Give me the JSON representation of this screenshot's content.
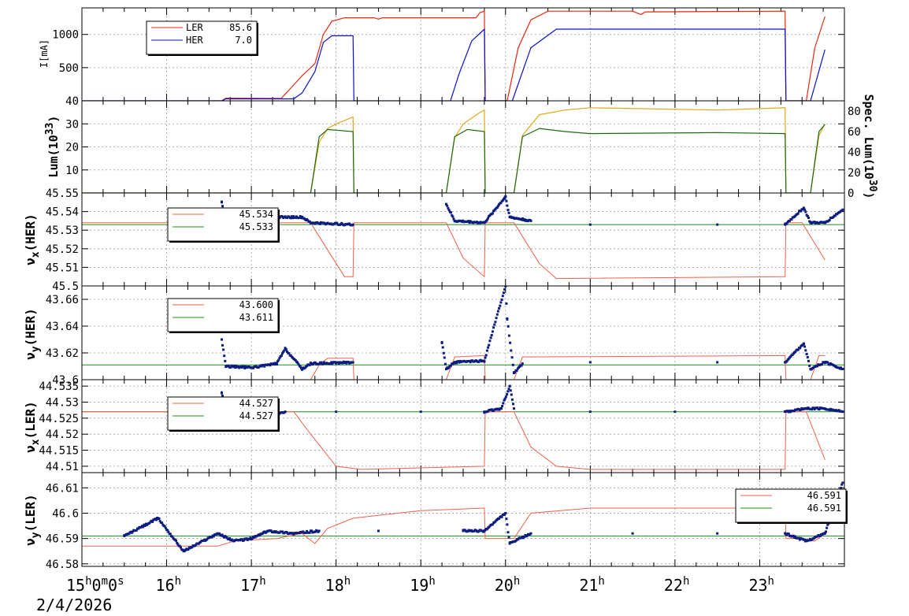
{
  "date_label": "2/4/2026",
  "colors": {
    "ler": "#e8280e",
    "her": "#0a10c8",
    "tune_line": "#f0604a",
    "tune_ref": "#1c8c1c",
    "tune_pts": "#0c1c80",
    "lum_gold": "#e0a818",
    "lum_green": "#1c6a10",
    "grid": "#9a9a9a"
  },
  "time_axis": {
    "start_hour": 15,
    "end_hour": 24,
    "ticks": [
      {
        "hour": 15,
        "text": "15",
        "sup": "h",
        "rest": "0",
        "sup2": "m",
        "rest2": "0",
        "sup3": "s"
      },
      {
        "hour": 16,
        "text": "16",
        "sup": "h"
      },
      {
        "hour": 17,
        "text": "17",
        "sup": "h"
      },
      {
        "hour": 18,
        "text": "18",
        "sup": "h"
      },
      {
        "hour": 19,
        "text": "19",
        "sup": "h"
      },
      {
        "hour": 20,
        "text": "20",
        "sup": "h"
      },
      {
        "hour": 21,
        "text": "21",
        "sup": "h"
      },
      {
        "hour": 22,
        "text": "22",
        "sup": "h"
      },
      {
        "hour": 23,
        "text": "23",
        "sup": "h"
      }
    ]
  },
  "chart_data": [
    {
      "type": "line",
      "ylabel": "I[mA]",
      "ylim": [
        0,
        1400
      ],
      "yticks": [
        "500",
        "1000"
      ],
      "ytick_values": [
        500,
        1000
      ],
      "legend": {
        "position": "top-left",
        "entries": [
          {
            "name": "LER",
            "value": "85.6",
            "color": "ler"
          },
          {
            "name": "HER",
            "value": "7.0",
            "color": "her"
          }
        ]
      },
      "series": [
        {
          "name": "LER",
          "color": "ler",
          "points": [
            [
              15,
              0
            ],
            [
              16.65,
              0
            ],
            [
              16.7,
              40
            ],
            [
              17.35,
              35
            ],
            [
              17.4,
              100
            ],
            [
              17.6,
              380
            ],
            [
              17.75,
              560
            ],
            [
              17.85,
              1000
            ],
            [
              17.95,
              1200
            ],
            [
              18.1,
              1250
            ],
            [
              18.45,
              1250
            ],
            [
              18.5,
              1230
            ],
            [
              18.55,
              1250
            ],
            [
              19.65,
              1250
            ],
            [
              19.7,
              1330
            ],
            [
              19.75,
              1350
            ],
            [
              19.76,
              0
            ],
            [
              20.02,
              0
            ],
            [
              20.15,
              800
            ],
            [
              20.3,
              1220
            ],
            [
              20.5,
              1350
            ],
            [
              21.5,
              1350
            ],
            [
              21.6,
              1300
            ],
            [
              21.65,
              1340
            ],
            [
              23.3,
              1350
            ],
            [
              23.31,
              0
            ],
            [
              23.55,
              0
            ],
            [
              23.65,
              800
            ],
            [
              23.77,
              1270
            ]
          ]
        },
        {
          "name": "HER",
          "color": "her",
          "points": [
            [
              15,
              0
            ],
            [
              16.65,
              0
            ],
            [
              16.7,
              30
            ],
            [
              17.5,
              30
            ],
            [
              17.6,
              120
            ],
            [
              17.75,
              440
            ],
            [
              17.85,
              880
            ],
            [
              17.95,
              980
            ],
            [
              18.2,
              980
            ],
            [
              18.21,
              0
            ],
            [
              19.35,
              0
            ],
            [
              19.45,
              400
            ],
            [
              19.6,
              900
            ],
            [
              19.75,
              1080
            ],
            [
              19.76,
              0
            ],
            [
              20.08,
              0
            ],
            [
              20.3,
              800
            ],
            [
              20.6,
              1080
            ],
            [
              23.3,
              1080
            ],
            [
              23.31,
              0
            ],
            [
              23.6,
              0
            ],
            [
              23.77,
              770
            ]
          ]
        }
      ]
    },
    {
      "type": "line",
      "ylabel": "Lum(10^33)",
      "ylim": [
        0,
        40
      ],
      "yticks": [
        "10",
        "20",
        "30",
        "40"
      ],
      "ytick_values": [
        10,
        20,
        30,
        40
      ],
      "y2label": "Spec. Lum(10^30)",
      "y2lim": [
        0,
        90
      ],
      "y2ticks": [
        "0",
        "20",
        "40",
        "60",
        "80"
      ],
      "y2tick_values": [
        0,
        20,
        40,
        60,
        80
      ],
      "series": [
        {
          "name": "Luminosity",
          "color": "lum_gold",
          "points": [
            [
              15,
              0
            ],
            [
              17.7,
              0
            ],
            [
              17.8,
              22
            ],
            [
              17.9,
              28
            ],
            [
              18.0,
              30
            ],
            [
              18.2,
              33
            ],
            [
              18.21,
              0
            ],
            [
              19.3,
              0
            ],
            [
              19.4,
              24
            ],
            [
              19.5,
              30
            ],
            [
              19.7,
              35
            ],
            [
              19.75,
              36
            ],
            [
              19.76,
              0
            ],
            [
              20.1,
              0
            ],
            [
              20.2,
              25
            ],
            [
              20.4,
              34
            ],
            [
              20.7,
              36
            ],
            [
              21.0,
              37
            ],
            [
              22.5,
              36
            ],
            [
              23.3,
              37
            ],
            [
              23.31,
              0
            ],
            [
              23.6,
              0
            ],
            [
              23.7,
              25
            ],
            [
              23.77,
              30
            ]
          ]
        },
        {
          "name": "Specific luminosity",
          "color": "lum_green",
          "points": [
            [
              15,
              0
            ],
            [
              17.7,
              0
            ],
            [
              17.8,
              55
            ],
            [
              17.9,
              62
            ],
            [
              18.2,
              60
            ],
            [
              18.21,
              0
            ],
            [
              19.3,
              0
            ],
            [
              19.4,
              55
            ],
            [
              19.55,
              62
            ],
            [
              19.75,
              60
            ],
            [
              19.76,
              0
            ],
            [
              20.1,
              0
            ],
            [
              20.2,
              55
            ],
            [
              20.4,
              63
            ],
            [
              20.7,
              60
            ],
            [
              21.0,
              58
            ],
            [
              22.5,
              59
            ],
            [
              23.3,
              58
            ],
            [
              23.31,
              0
            ],
            [
              23.6,
              0
            ],
            [
              23.7,
              60
            ],
            [
              23.77,
              67
            ]
          ]
        }
      ]
    },
    {
      "type": "scatter",
      "ylabel": "νx(HER)",
      "ylim": [
        45.5,
        45.55
      ],
      "yticks": [
        "45.5",
        "45.51",
        "45.52",
        "45.53",
        "45.54",
        "45.55"
      ],
      "ytick_values": [
        45.5,
        45.51,
        45.52,
        45.53,
        45.54,
        45.55
      ],
      "legend": {
        "position": "top-left",
        "entries": [
          {
            "value": "45.534",
            "color": "tune_line"
          },
          {
            "value": "45.533",
            "color": "tune_ref"
          }
        ]
      },
      "reference": 45.533,
      "setpoint": [
        [
          15,
          45.534
        ],
        [
          17.7,
          45.534
        ],
        [
          17.85,
          45.523
        ],
        [
          18.1,
          45.505
        ],
        [
          18.2,
          45.505
        ],
        [
          18.21,
          45.534
        ],
        [
          19.3,
          45.534
        ],
        [
          19.5,
          45.515
        ],
        [
          19.75,
          45.505
        ],
        [
          19.76,
          45.534
        ],
        [
          20.1,
          45.534
        ],
        [
          20.4,
          45.512
        ],
        [
          20.6,
          45.504
        ],
        [
          23.3,
          45.505
        ],
        [
          23.31,
          45.534
        ],
        [
          23.5,
          45.534
        ],
        [
          23.77,
          45.514
        ]
      ],
      "measured": [
        [
          16.65,
          45.545
        ],
        [
          16.7,
          45.537
        ],
        [
          17.0,
          45.537
        ],
        [
          17.3,
          45.537
        ],
        [
          17.6,
          45.537
        ],
        [
          17.7,
          45.534
        ],
        [
          18.2,
          45.533
        ],
        [
          19.3,
          45.544
        ],
        [
          19.4,
          45.535
        ],
        [
          19.75,
          45.534
        ],
        [
          20.0,
          45.548
        ],
        [
          20.05,
          45.537
        ],
        [
          20.3,
          45.535
        ],
        [
          21.0,
          45.533
        ],
        [
          22.5,
          45.533
        ],
        [
          23.3,
          45.533
        ],
        [
          23.52,
          45.542
        ],
        [
          23.6,
          45.534
        ],
        [
          23.77,
          45.534
        ],
        [
          23.98,
          45.541
        ]
      ]
    },
    {
      "type": "scatter",
      "ylabel": "νy(HER)",
      "ylim": [
        43.6,
        43.67
      ],
      "yticks": [
        "43.6",
        "43.62",
        "43.64",
        "43.66"
      ],
      "ytick_values": [
        43.6,
        43.62,
        43.64,
        43.66
      ],
      "legend": {
        "position": "top-left",
        "entries": [
          {
            "value": "43.600",
            "color": "tune_line"
          },
          {
            "value": "43.611",
            "color": "tune_ref"
          }
        ]
      },
      "reference": 43.611,
      "setpoint": [
        [
          15,
          43.6
        ],
        [
          17.7,
          43.6
        ],
        [
          17.8,
          43.611
        ],
        [
          17.9,
          43.616
        ],
        [
          18.2,
          43.616
        ],
        [
          18.21,
          43.6
        ],
        [
          19.3,
          43.6
        ],
        [
          19.4,
          43.617
        ],
        [
          19.75,
          43.618
        ],
        [
          19.76,
          43.6
        ],
        [
          20.1,
          43.6
        ],
        [
          20.2,
          43.617
        ],
        [
          23.3,
          43.618
        ],
        [
          23.31,
          43.6
        ],
        [
          23.6,
          43.6
        ],
        [
          23.7,
          43.618
        ],
        [
          23.77,
          43.618
        ]
      ],
      "measured": [
        [
          16.65,
          43.63
        ],
        [
          16.7,
          43.61
        ],
        [
          17.0,
          43.609
        ],
        [
          17.3,
          43.612
        ],
        [
          17.4,
          43.623
        ],
        [
          17.6,
          43.608
        ],
        [
          17.7,
          43.612
        ],
        [
          18.2,
          43.613
        ],
        [
          19.25,
          43.628
        ],
        [
          19.3,
          43.608
        ],
        [
          19.4,
          43.613
        ],
        [
          19.75,
          43.614
        ],
        [
          20.0,
          43.67
        ],
        [
          20.02,
          43.645
        ],
        [
          20.1,
          43.605
        ],
        [
          20.2,
          43.612
        ],
        [
          21.0,
          43.613
        ],
        [
          22.5,
          43.613
        ],
        [
          23.3,
          43.613
        ],
        [
          23.52,
          43.627
        ],
        [
          23.6,
          43.608
        ],
        [
          23.77,
          43.613
        ],
        [
          23.98,
          43.608
        ]
      ]
    },
    {
      "type": "scatter",
      "ylabel": "νx(LER)",
      "ylim": [
        44.508,
        44.537
      ],
      "yticks": [
        "44.51",
        "44.515",
        "44.52",
        "44.525",
        "44.53",
        "44.535"
      ],
      "ytick_values": [
        44.51,
        44.515,
        44.52,
        44.525,
        44.53,
        44.535
      ],
      "legend": {
        "position": "top-left",
        "entries": [
          {
            "value": "44.527",
            "color": "tune_line"
          },
          {
            "value": "44.527",
            "color": "tune_ref"
          }
        ]
      },
      "reference": 44.527,
      "setpoint": [
        [
          15,
          44.527
        ],
        [
          17.5,
          44.527
        ],
        [
          17.7,
          44.52
        ],
        [
          18.0,
          44.51
        ],
        [
          18.3,
          44.509
        ],
        [
          19.75,
          44.51
        ],
        [
          19.76,
          44.527
        ],
        [
          20.1,
          44.527
        ],
        [
          20.3,
          44.516
        ],
        [
          20.6,
          44.51
        ],
        [
          21.0,
          44.509
        ],
        [
          23.3,
          44.509
        ],
        [
          23.31,
          44.527
        ],
        [
          23.55,
          44.527
        ],
        [
          23.77,
          44.512
        ]
      ],
      "measured": [
        [
          16.65,
          44.533
        ],
        [
          16.7,
          44.528
        ],
        [
          17.0,
          44.526
        ],
        [
          17.2,
          44.525
        ],
        [
          17.4,
          44.527
        ],
        [
          18.0,
          44.527
        ],
        [
          19.0,
          44.527
        ],
        [
          19.75,
          44.527
        ],
        [
          19.95,
          44.528
        ],
        [
          20.05,
          44.535
        ],
        [
          20.1,
          44.528
        ],
        [
          21.0,
          44.527
        ],
        [
          22.0,
          44.527
        ],
        [
          23.3,
          44.527
        ],
        [
          23.55,
          44.528
        ],
        [
          23.77,
          44.528
        ],
        [
          23.98,
          44.527
        ]
      ]
    },
    {
      "type": "scatter",
      "ylabel": "νy(LER)",
      "ylim": [
        46.579,
        46.616
      ],
      "yticks": [
        "46.58",
        "46.59",
        "46.6",
        "46.61"
      ],
      "ytick_values": [
        46.58,
        46.59,
        46.6,
        46.61
      ],
      "legend": {
        "position": "top-right",
        "entries": [
          {
            "value": "46.591",
            "color": "tune_line"
          },
          {
            "value": "46.591",
            "color": "tune_ref"
          }
        ]
      },
      "reference": 46.591,
      "setpoint": [
        [
          15,
          46.587
        ],
        [
          16.6,
          46.587
        ],
        [
          16.8,
          46.589
        ],
        [
          17.3,
          46.59
        ],
        [
          17.6,
          46.592
        ],
        [
          17.75,
          46.588
        ],
        [
          17.9,
          46.594
        ],
        [
          18.2,
          46.598
        ],
        [
          19.0,
          46.601
        ],
        [
          19.75,
          46.602
        ],
        [
          19.76,
          46.59
        ],
        [
          20.1,
          46.59
        ],
        [
          20.3,
          46.6
        ],
        [
          21.0,
          46.602
        ],
        [
          23.3,
          46.602
        ],
        [
          23.31,
          46.59
        ],
        [
          23.5,
          46.59
        ],
        [
          23.65,
          46.589
        ],
        [
          23.77,
          46.592
        ]
      ],
      "measured": [
        [
          15.5,
          46.591
        ],
        [
          15.9,
          46.598
        ],
        [
          16.2,
          46.585
        ],
        [
          16.6,
          46.592
        ],
        [
          16.8,
          46.589
        ],
        [
          17.0,
          46.59
        ],
        [
          17.2,
          46.593
        ],
        [
          17.5,
          46.592
        ],
        [
          17.8,
          46.593
        ],
        [
          18.5,
          46.593
        ],
        [
          19.5,
          46.593
        ],
        [
          19.75,
          46.593
        ],
        [
          20.0,
          46.6
        ],
        [
          20.05,
          46.588
        ],
        [
          20.3,
          46.592
        ],
        [
          21.5,
          46.592
        ],
        [
          22.5,
          46.592
        ],
        [
          23.3,
          46.592
        ],
        [
          23.55,
          46.589
        ],
        [
          23.77,
          46.592
        ],
        [
          23.98,
          46.612
        ]
      ]
    }
  ]
}
